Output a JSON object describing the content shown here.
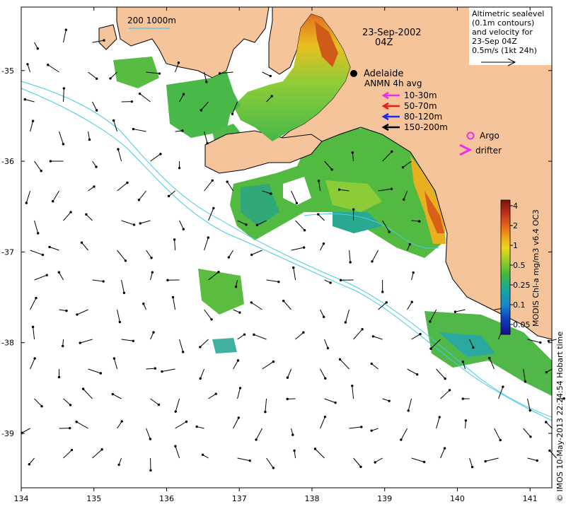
{
  "map": {
    "lon_range": [
      134,
      141.3
    ],
    "lat_range": [
      -39.6,
      -34.3
    ],
    "lon_ticks": [
      "134",
      "135",
      "136",
      "137",
      "138",
      "139",
      "140",
      "141"
    ],
    "lat_ticks": [
      "-35",
      "-36",
      "-37",
      "-38",
      "-39"
    ],
    "colors": {
      "land": "#f6c49a",
      "ocean": "#ffffff",
      "isobath": "#45c8e8",
      "coast": "#000000",
      "argo": "#e830e8",
      "drifter": "#e830e8"
    }
  },
  "depth_label": "200  1000m",
  "date_label": "23-Sep-2002",
  "time_label": "04Z",
  "city": {
    "name": "Adelaide",
    "lon": 138.6,
    "lat": -34.93
  },
  "altimetry_note": [
    "Altimetric sealevel",
    "(0.1m contours)",
    "and velocity for",
    "23-Sep 04Z",
    "0.5m/s (1kt 24h)"
  ],
  "anmn": {
    "title": "ANMN 4h avg",
    "items": [
      {
        "label": "10-30m",
        "color": "#e830e8"
      },
      {
        "label": "50-70m",
        "color": "#e8201a"
      },
      {
        "label": "80-120m",
        "color": "#1a2ae8"
      },
      {
        "label": "150-200m",
        "color": "#000000"
      }
    ]
  },
  "argo_label": "Argo",
  "drifter_label": "drifter",
  "colorbar": {
    "title": "MODIS Chl-a mg/m3 v6.4 OC3",
    "tick_labels": [
      "4",
      "2",
      "1",
      "0.5",
      "0.25",
      "0.1",
      "0.05"
    ],
    "colors": [
      "#7a1010",
      "#c0301a",
      "#e86a1a",
      "#f0a81a",
      "#e8d81a",
      "#b8d820",
      "#70c830",
      "#30b040",
      "#18a898",
      "#1888d0",
      "#1040c0",
      "#10108a"
    ]
  },
  "credit": "© IMOS 10-May-2013 22:24:54 Hobart time"
}
